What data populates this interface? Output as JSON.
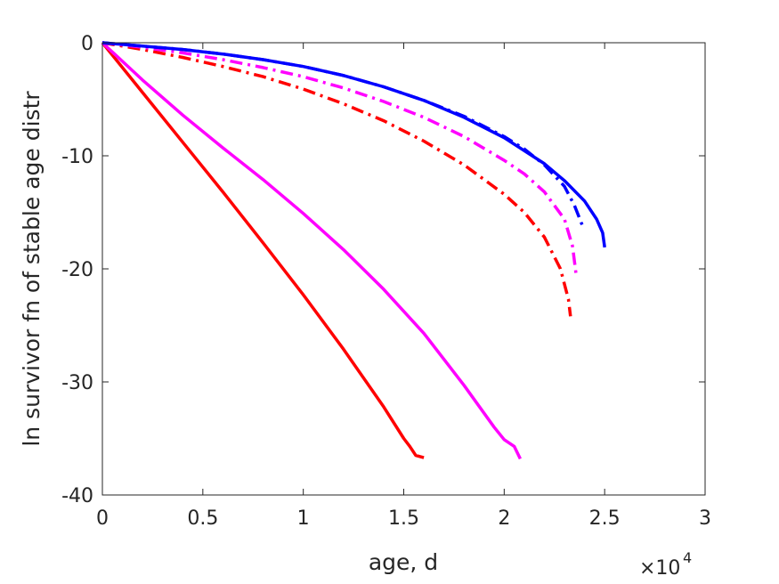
{
  "chart_data": {
    "type": "line",
    "title": "",
    "xlabel": "age, d",
    "ylabel": "ln survivor fn of stable age distr",
    "x_multiplier": "×10",
    "x_multiplier_exp": "4",
    "xlim": [
      0,
      3
    ],
    "ylim": [
      -40,
      0
    ],
    "xticks": [
      "0",
      "0.5",
      "1",
      "1.5",
      "2",
      "2.5",
      "3"
    ],
    "yticks": [
      "0",
      "-10",
      "-20",
      "-30",
      "-40"
    ],
    "grid": false,
    "series": [
      {
        "color": "#ff0000",
        "style": "solid",
        "x": [
          0,
          0.2,
          0.4,
          0.6,
          0.8,
          1.0,
          1.2,
          1.4,
          1.5,
          1.53,
          1.56,
          1.6
        ],
        "y": [
          0,
          -4.4,
          -8.8,
          -13.2,
          -17.7,
          -22.3,
          -27.1,
          -32.2,
          -35.0,
          -35.7,
          -36.5,
          -36.7
        ]
      },
      {
        "color": "#ff00ff",
        "style": "solid",
        "x": [
          0,
          0.2,
          0.4,
          0.6,
          0.8,
          1.0,
          1.2,
          1.4,
          1.6,
          1.8,
          1.95,
          2.0,
          2.05,
          2.08
        ],
        "y": [
          0,
          -3.3,
          -6.4,
          -9.3,
          -12.1,
          -15.1,
          -18.3,
          -21.8,
          -25.7,
          -30.3,
          -34.0,
          -35.1,
          -35.7,
          -36.8
        ]
      },
      {
        "color": "#ff0000",
        "style": "dashdot",
        "x": [
          0,
          0.2,
          0.4,
          0.6,
          0.8,
          1.0,
          1.2,
          1.4,
          1.6,
          1.8,
          2.0,
          2.1,
          2.2,
          2.28,
          2.32,
          2.33
        ],
        "y": [
          0,
          -0.6,
          -1.3,
          -2.1,
          -3.0,
          -4.1,
          -5.4,
          -6.9,
          -8.7,
          -10.8,
          -13.4,
          -15.0,
          -17.2,
          -20.0,
          -22.7,
          -24.2
        ]
      },
      {
        "color": "#ff00ff",
        "style": "dashdot",
        "x": [
          0,
          0.2,
          0.4,
          0.6,
          0.8,
          1.0,
          1.2,
          1.4,
          1.6,
          1.8,
          2.0,
          2.1,
          2.2,
          2.3,
          2.34,
          2.36
        ],
        "y": [
          0,
          -0.4,
          -0.9,
          -1.5,
          -2.2,
          -3.0,
          -4.0,
          -5.2,
          -6.6,
          -8.3,
          -10.4,
          -11.6,
          -13.2,
          -15.6,
          -18.0,
          -20.8
        ]
      },
      {
        "color": "#0000ff",
        "style": "dashdot",
        "x": [
          0,
          0.2,
          0.4,
          0.6,
          0.8,
          1.0,
          1.2,
          1.4,
          1.6,
          1.8,
          2.0,
          2.1,
          2.2,
          2.3,
          2.35,
          2.39
        ],
        "y": [
          0,
          -0.3,
          -0.6,
          -1.0,
          -1.5,
          -2.1,
          -2.9,
          -3.9,
          -5.1,
          -6.5,
          -8.3,
          -9.4,
          -10.8,
          -12.7,
          -14.4,
          -16.2
        ]
      },
      {
        "color": "#0000ff",
        "style": "solid",
        "x": [
          0,
          0.2,
          0.4,
          0.6,
          0.8,
          1.0,
          1.2,
          1.4,
          1.6,
          1.8,
          2.0,
          2.2,
          2.3,
          2.4,
          2.46,
          2.49,
          2.5
        ],
        "y": [
          0,
          -0.3,
          -0.6,
          -1.0,
          -1.5,
          -2.1,
          -2.9,
          -3.9,
          -5.1,
          -6.6,
          -8.4,
          -10.7,
          -12.2,
          -14.0,
          -15.6,
          -16.8,
          -18.1
        ]
      }
    ]
  }
}
